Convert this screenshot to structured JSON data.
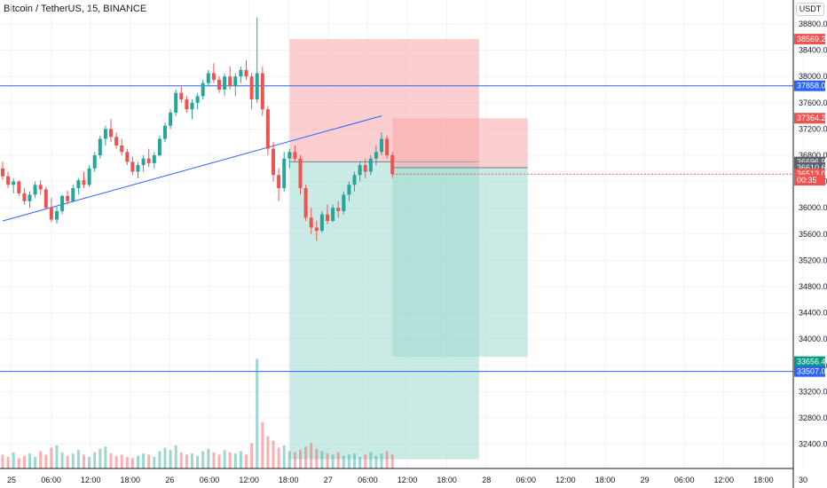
{
  "header": {
    "symbol_title": "Bitcoin / TetherUS, 15, BINANCE",
    "currency": "USDT"
  },
  "colors": {
    "up": "#26a69a",
    "down": "#ef5350",
    "hline": "#2962ff",
    "trend": "#2962ff",
    "stop_zone": "#f7a8a8",
    "target_zone": "#9fd8cf"
  },
  "chart_data": {
    "type": "candlestick",
    "title": "",
    "x_ticks": [
      "25",
      "06:00",
      "12:00",
      "18:00",
      "26",
      "06:00",
      "12:00",
      "18:00",
      "27",
      "06:00",
      "12:00",
      "18:00",
      "28",
      "06:00",
      "12:00",
      "18:00",
      "29",
      "06:00",
      "12:00",
      "18:00",
      "30"
    ],
    "y_ticks": [
      "38800.00",
      "38400.00",
      "38000.00",
      "37600.00",
      "37200.00",
      "36800.00",
      "36400.00",
      "36000.00",
      "35600.00",
      "35200.00",
      "34800.00",
      "34400.00",
      "34000.00",
      "33600.00",
      "33200.00",
      "32800.00",
      "32400.00"
    ],
    "ylim": [
      32170,
      38990
    ],
    "grid": true,
    "price_tags": [
      {
        "label": "38569.23",
        "value": 38569.23,
        "color": "#ef5350"
      },
      {
        "label": "37858.07",
        "value": 37858.07,
        "color": "#2962ff"
      },
      {
        "label": "37364.29",
        "value": 37364.29,
        "color": "#ef5350"
      },
      {
        "label": "36696.94",
        "value": 36696.94,
        "color": "#5d606b"
      },
      {
        "label": "36610.63",
        "value": 36610.63,
        "color": "#5d606b"
      },
      {
        "label": "36513.04",
        "value": 36513.04,
        "color": "#ef5350"
      },
      {
        "label": "00:35",
        "value": 36420,
        "color": "#ef5350"
      },
      {
        "label": "33656.49",
        "value": 33656.49,
        "color": "#089981"
      },
      {
        "label": "33507.03",
        "value": 33507.03,
        "color": "#2962ff"
      }
    ],
    "horizontal_lines": [
      37858.07,
      33507.03
    ],
    "trend_line": {
      "from": [
        0,
        35800
      ],
      "to": [
        70,
        37400
      ]
    },
    "positions": [
      {
        "from": 53,
        "to": 88,
        "entry": 36700,
        "stop": 38569.23,
        "target": 32170
      },
      {
        "from": 72,
        "to": 97,
        "entry": 36610.63,
        "stop": 37364.29,
        "target": 33730
      }
    ],
    "candles": [
      [
        36600,
        36700,
        36420,
        36480
      ],
      [
        36480,
        36550,
        36300,
        36350
      ],
      [
        36350,
        36450,
        36220,
        36400
      ],
      [
        36400,
        36420,
        36180,
        36220
      ],
      [
        36220,
        36300,
        36050,
        36100
      ],
      [
        36100,
        36250,
        36000,
        36200
      ],
      [
        36200,
        36400,
        36150,
        36350
      ],
      [
        36350,
        36420,
        36200,
        36280
      ],
      [
        36280,
        36320,
        35980,
        36000
      ],
      [
        36000,
        36150,
        35780,
        35820
      ],
      [
        35820,
        36020,
        35760,
        35950
      ],
      [
        35950,
        36200,
        35900,
        36180
      ],
      [
        36180,
        36260,
        36050,
        36100
      ],
      [
        36100,
        36350,
        36080,
        36300
      ],
      [
        36300,
        36450,
        36200,
        36420
      ],
      [
        36420,
        36550,
        36300,
        36350
      ],
      [
        36350,
        36650,
        36320,
        36600
      ],
      [
        36600,
        36850,
        36550,
        36800
      ],
      [
        36800,
        37100,
        36750,
        37050
      ],
      [
        37050,
        37250,
        36950,
        37200
      ],
      [
        37200,
        37350,
        37000,
        37080
      ],
      [
        37080,
        37150,
        36900,
        36950
      ],
      [
        36950,
        37050,
        36800,
        36850
      ],
      [
        36850,
        36900,
        36650,
        36700
      ],
      [
        36700,
        36780,
        36500,
        36550
      ],
      [
        36550,
        36700,
        36450,
        36650
      ],
      [
        36650,
        36800,
        36550,
        36750
      ],
      [
        36750,
        36900,
        36620,
        36680
      ],
      [
        36680,
        36850,
        36600,
        36800
      ],
      [
        36800,
        37100,
        36780,
        37050
      ],
      [
        37050,
        37300,
        37000,
        37250
      ],
      [
        37250,
        37500,
        37200,
        37450
      ],
      [
        37450,
        37800,
        37400,
        37750
      ],
      [
        37750,
        37850,
        37600,
        37650
      ],
      [
        37650,
        37700,
        37450,
        37500
      ],
      [
        37500,
        37650,
        37350,
        37600
      ],
      [
        37600,
        37750,
        37500,
        37700
      ],
      [
        37700,
        37950,
        37650,
        37900
      ],
      [
        37900,
        38100,
        37850,
        38050
      ],
      [
        38050,
        38200,
        37900,
        37950
      ],
      [
        37950,
        38000,
        37750,
        37800
      ],
      [
        37800,
        38050,
        37700,
        38000
      ],
      [
        38000,
        38150,
        37800,
        37850
      ],
      [
        37850,
        38050,
        37700,
        38000
      ],
      [
        38000,
        38150,
        37900,
        38100
      ],
      [
        38100,
        38250,
        37950,
        38000
      ],
      [
        38000,
        38050,
        37500,
        37650
      ],
      [
        37650,
        38900,
        37600,
        38050
      ],
      [
        38050,
        38150,
        37400,
        37500
      ],
      [
        37500,
        37550,
        36800,
        36900
      ],
      [
        36900,
        37000,
        36400,
        36500
      ],
      [
        36500,
        36600,
        36100,
        36300
      ],
      [
        36300,
        36850,
        36250,
        36750
      ],
      [
        36750,
        36900,
        36600,
        36850
      ],
      [
        36850,
        36950,
        36700,
        36750
      ],
      [
        36750,
        36800,
        36200,
        36300
      ],
      [
        36300,
        36350,
        35800,
        35850
      ],
      [
        35850,
        36000,
        35600,
        35700
      ],
      [
        35700,
        35800,
        35500,
        35650
      ],
      [
        35650,
        35950,
        35620,
        35900
      ],
      [
        35900,
        36050,
        35750,
        35800
      ],
      [
        35800,
        36050,
        35780,
        36000
      ],
      [
        36000,
        36100,
        35850,
        35950
      ],
      [
        35950,
        36250,
        35900,
        36200
      ],
      [
        36200,
        36400,
        36100,
        36350
      ],
      [
        36350,
        36550,
        36250,
        36500
      ],
      [
        36500,
        36700,
        36400,
        36650
      ],
      [
        36650,
        36750,
        36450,
        36550
      ],
      [
        36550,
        36800,
        36500,
        36750
      ],
      [
        36750,
        36950,
        36650,
        36850
      ],
      [
        36850,
        37150,
        36800,
        37050
      ],
      [
        37050,
        37100,
        36750,
        36800
      ],
      [
        36800,
        36850,
        36450,
        36513.04
      ]
    ],
    "volume_ylim": [
      0,
      100
    ],
    "volumes": [
      12,
      10,
      14,
      9,
      11,
      13,
      10,
      15,
      12,
      18,
      20,
      14,
      11,
      13,
      16,
      12,
      10,
      14,
      17,
      19,
      13,
      11,
      12,
      10,
      9,
      11,
      13,
      12,
      10,
      15,
      18,
      16,
      20,
      14,
      12,
      13,
      11,
      15,
      17,
      14,
      12,
      16,
      14,
      13,
      15,
      12,
      22,
      95,
      40,
      28,
      24,
      18,
      20,
      15,
      14,
      16,
      19,
      22,
      17,
      15,
      13,
      12,
      14,
      11,
      12,
      13,
      10,
      12,
      14,
      11,
      13,
      15,
      12
    ]
  }
}
